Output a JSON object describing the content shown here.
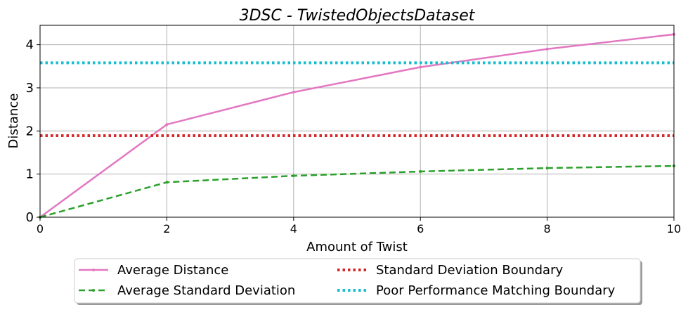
{
  "chart_data": {
    "type": "line",
    "title": "3DSC - TwistedObjectsDataset",
    "xlabel": "Amount of Twist",
    "ylabel": "Distance",
    "xlim": [
      0,
      10
    ],
    "ylim": [
      0,
      4.45
    ],
    "xticks": [
      "0",
      "2",
      "4",
      "6",
      "8",
      "10"
    ],
    "yticks": [
      "0",
      "1",
      "2",
      "3",
      "4"
    ],
    "grid": true,
    "legend_position": "below",
    "series": [
      {
        "name": "Average Distance",
        "style": "solid",
        "color": "#e377c2",
        "x": [
          0,
          2,
          4,
          6,
          8,
          10
        ],
        "y": [
          0,
          2.15,
          2.9,
          3.48,
          3.9,
          4.24
        ]
      },
      {
        "name": "Average Standard Deviation",
        "style": "dashed",
        "color": "#2ca02c",
        "x": [
          0,
          2,
          4,
          6,
          8,
          10
        ],
        "y": [
          0,
          0.81,
          0.96,
          1.06,
          1.14,
          1.19
        ]
      },
      {
        "name": "Standard Deviation Boundary",
        "style": "dotted",
        "color": "#d62728",
        "x": [
          0,
          10
        ],
        "y": [
          1.89,
          1.89
        ]
      },
      {
        "name": "Poor Performance Matching Boundary",
        "style": "dotted",
        "color": "#17becf",
        "x": [
          0,
          10
        ],
        "y": [
          3.58,
          3.58
        ]
      }
    ]
  }
}
